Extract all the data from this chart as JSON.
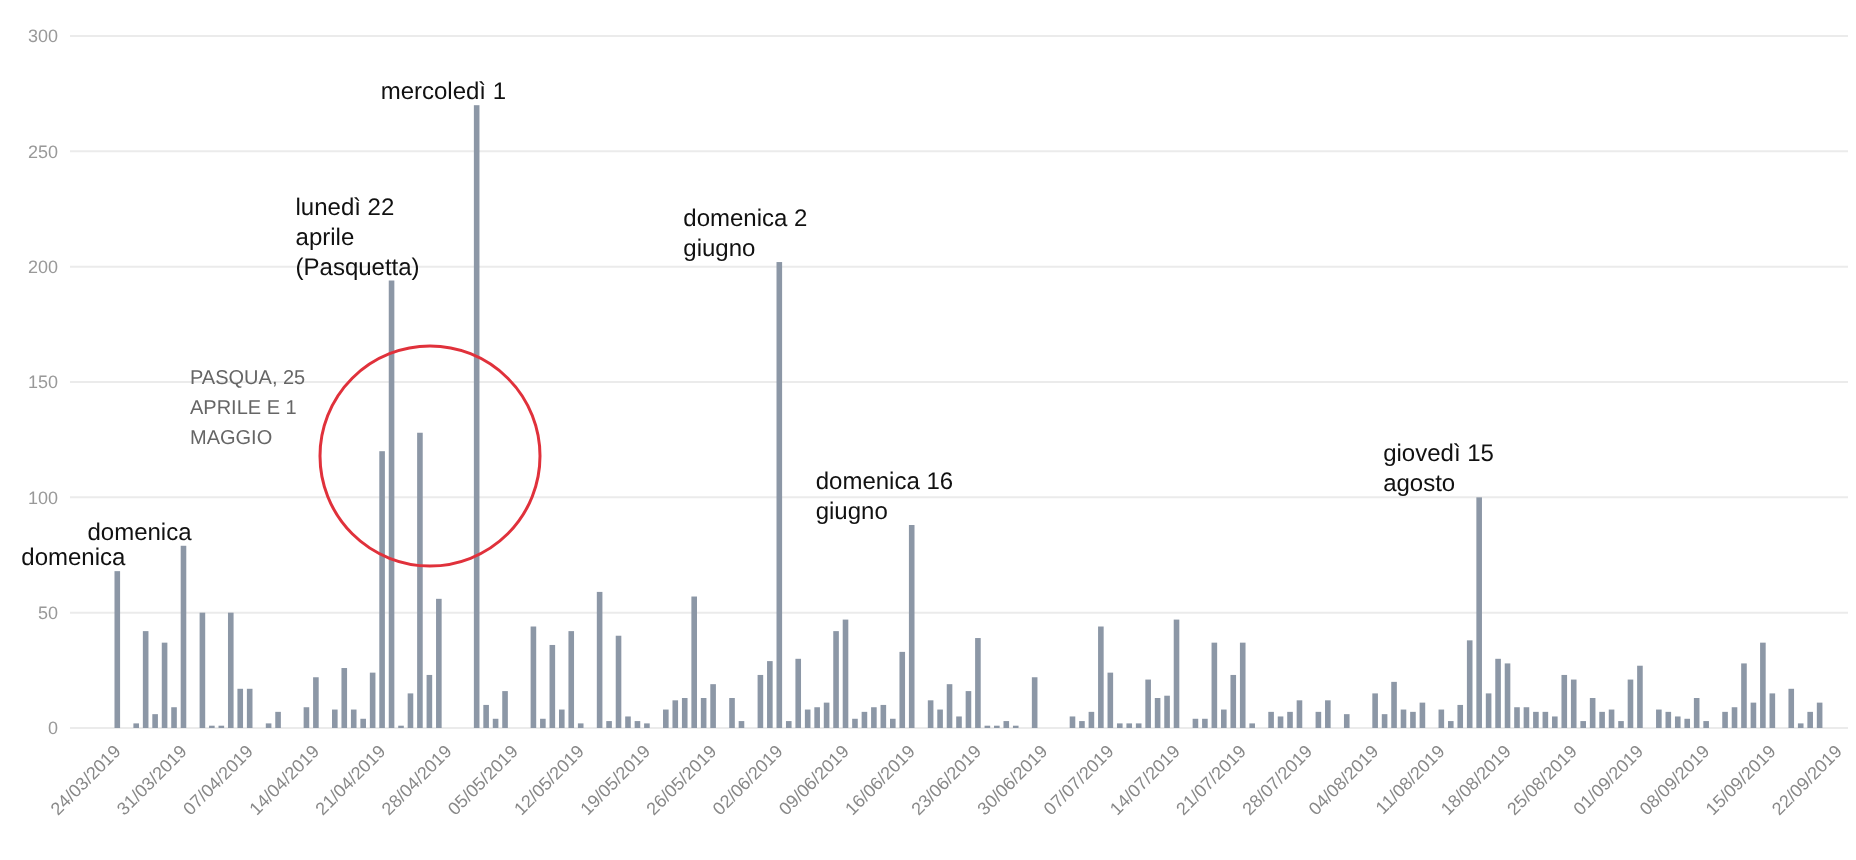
{
  "chart_data": {
    "type": "bar",
    "color": "#8c97a6",
    "x": [
      "2019-03-24",
      "2019-03-25",
      "2019-03-26",
      "2019-03-27",
      "2019-03-28",
      "2019-03-29",
      "2019-03-30",
      "2019-03-31",
      "2019-04-01",
      "2019-04-02",
      "2019-04-03",
      "2019-04-04",
      "2019-04-05",
      "2019-04-06",
      "2019-04-07",
      "2019-04-08",
      "2019-04-09",
      "2019-04-10",
      "2019-04-11",
      "2019-04-12",
      "2019-04-13",
      "2019-04-14",
      "2019-04-15",
      "2019-04-16",
      "2019-04-17",
      "2019-04-18",
      "2019-04-19",
      "2019-04-20",
      "2019-04-21",
      "2019-04-22",
      "2019-04-23",
      "2019-04-24",
      "2019-04-25",
      "2019-04-26",
      "2019-04-27",
      "2019-04-28",
      "2019-04-29",
      "2019-04-30",
      "2019-05-01",
      "2019-05-02",
      "2019-05-03",
      "2019-05-04",
      "2019-05-05",
      "2019-05-06",
      "2019-05-07",
      "2019-05-08",
      "2019-05-09",
      "2019-05-10",
      "2019-05-11",
      "2019-05-12",
      "2019-05-13",
      "2019-05-14",
      "2019-05-15",
      "2019-05-16",
      "2019-05-17",
      "2019-05-18",
      "2019-05-19",
      "2019-05-20",
      "2019-05-21",
      "2019-05-22",
      "2019-05-23",
      "2019-05-24",
      "2019-05-25",
      "2019-05-26",
      "2019-05-27",
      "2019-05-28",
      "2019-05-29",
      "2019-05-30",
      "2019-05-31",
      "2019-06-01",
      "2019-06-02",
      "2019-06-03",
      "2019-06-04",
      "2019-06-05",
      "2019-06-06",
      "2019-06-07",
      "2019-06-08",
      "2019-06-09",
      "2019-06-10",
      "2019-06-11",
      "2019-06-12",
      "2019-06-13",
      "2019-06-14",
      "2019-06-15",
      "2019-06-16",
      "2019-06-17",
      "2019-06-18",
      "2019-06-19",
      "2019-06-20",
      "2019-06-21",
      "2019-06-22",
      "2019-06-23",
      "2019-06-24",
      "2019-06-25",
      "2019-06-26",
      "2019-06-27",
      "2019-06-28",
      "2019-06-29",
      "2019-06-30",
      "2019-07-01",
      "2019-07-02",
      "2019-07-03",
      "2019-07-04",
      "2019-07-05",
      "2019-07-06",
      "2019-07-07",
      "2019-07-08",
      "2019-07-09",
      "2019-07-10",
      "2019-07-11",
      "2019-07-12",
      "2019-07-13",
      "2019-07-14",
      "2019-07-15",
      "2019-07-16",
      "2019-07-17",
      "2019-07-18",
      "2019-07-19",
      "2019-07-20",
      "2019-07-21",
      "2019-07-22",
      "2019-07-23",
      "2019-07-24",
      "2019-07-25",
      "2019-07-26",
      "2019-07-27",
      "2019-07-28",
      "2019-07-29",
      "2019-07-30",
      "2019-07-31",
      "2019-08-01",
      "2019-08-02",
      "2019-08-03",
      "2019-08-04",
      "2019-08-05",
      "2019-08-06",
      "2019-08-07",
      "2019-08-08",
      "2019-08-09",
      "2019-08-10",
      "2019-08-11",
      "2019-08-12",
      "2019-08-13",
      "2019-08-14",
      "2019-08-15",
      "2019-08-16",
      "2019-08-17",
      "2019-08-18",
      "2019-08-19",
      "2019-08-20",
      "2019-08-21",
      "2019-08-22",
      "2019-08-23",
      "2019-08-24",
      "2019-08-25",
      "2019-08-26",
      "2019-08-27",
      "2019-08-28",
      "2019-08-29",
      "2019-08-30",
      "2019-08-31",
      "2019-09-01",
      "2019-09-02",
      "2019-09-03",
      "2019-09-04",
      "2019-09-05",
      "2019-09-06",
      "2019-09-07",
      "2019-09-08",
      "2019-09-09",
      "2019-09-10",
      "2019-09-11",
      "2019-09-12",
      "2019-09-13",
      "2019-09-14",
      "2019-09-15",
      "2019-09-16",
      "2019-09-17",
      "2019-09-18",
      "2019-09-19",
      "2019-09-20"
    ],
    "values": [
      68,
      0,
      2,
      42,
      6,
      37,
      9,
      79,
      0,
      50,
      1,
      1,
      50,
      17,
      17,
      0,
      2,
      7,
      0,
      0,
      9,
      22,
      0,
      8,
      26,
      8,
      4,
      24,
      120,
      194,
      1,
      15,
      128,
      23,
      56,
      0,
      0,
      0,
      270,
      10,
      4,
      16,
      0,
      0,
      44,
      4,
      36,
      8,
      42,
      2,
      0,
      59,
      3,
      40,
      5,
      3,
      2,
      0,
      8,
      12,
      13,
      57,
      13,
      19,
      0,
      13,
      3,
      0,
      23,
      29,
      202,
      3,
      30,
      8,
      9,
      11,
      42,
      47,
      4,
      7,
      9,
      10,
      4,
      33,
      88,
      0,
      12,
      8,
      19,
      5,
      16,
      39,
      1,
      1,
      3,
      1,
      0,
      22,
      0,
      0,
      0,
      5,
      3,
      7,
      44,
      24,
      2,
      2,
      2,
      21,
      13,
      14,
      47,
      0,
      4,
      4,
      37,
      8,
      23,
      37,
      2,
      0,
      7,
      5,
      7,
      12,
      0,
      7,
      12,
      0,
      6,
      0,
      0,
      15,
      6,
      20,
      8,
      7,
      11,
      0,
      8,
      3,
      10,
      38,
      100,
      15,
      30,
      28,
      9,
      9,
      7,
      7,
      5,
      23,
      21,
      3,
      13,
      7,
      8,
      3,
      21,
      27,
      0,
      8,
      7,
      5,
      4,
      13,
      3,
      0,
      7,
      9,
      28,
      11,
      37,
      15,
      0,
      17,
      2,
      7,
      11
    ],
    "xlim": [
      "2019-03-19",
      "2019-09-23"
    ],
    "xticks": [
      {
        "value": "2019-03-24",
        "label": "24/03/2019"
      },
      {
        "value": "2019-03-31",
        "label": "31/03/2019"
      },
      {
        "value": "2019-04-07",
        "label": "07/04/2019"
      },
      {
        "value": "2019-04-14",
        "label": "14/04/2019"
      },
      {
        "value": "2019-04-21",
        "label": "21/04/2019"
      },
      {
        "value": "2019-04-28",
        "label": "28/04/2019"
      },
      {
        "value": "2019-05-05",
        "label": "05/05/2019"
      },
      {
        "value": "2019-05-12",
        "label": "12/05/2019"
      },
      {
        "value": "2019-05-19",
        "label": "19/05/2019"
      },
      {
        "value": "2019-05-26",
        "label": "26/05/2019"
      },
      {
        "value": "2019-06-02",
        "label": "02/06/2019"
      },
      {
        "value": "2019-06-09",
        "label": "09/06/2019"
      },
      {
        "value": "2019-06-16",
        "label": "16/06/2019"
      },
      {
        "value": "2019-06-23",
        "label": "23/06/2019"
      },
      {
        "value": "2019-06-30",
        "label": "30/06/2019"
      },
      {
        "value": "2019-07-07",
        "label": "07/07/2019"
      },
      {
        "value": "2019-07-14",
        "label": "14/07/2019"
      },
      {
        "value": "2019-07-21",
        "label": "21/07/2019"
      },
      {
        "value": "2019-07-28",
        "label": "28/07/2019"
      },
      {
        "value": "2019-08-04",
        "label": "04/08/2019"
      },
      {
        "value": "2019-08-11",
        "label": "11/08/2019"
      },
      {
        "value": "2019-08-18",
        "label": "18/08/2019"
      },
      {
        "value": "2019-08-25",
        "label": "25/08/2019"
      },
      {
        "value": "2019-09-01",
        "label": "01/09/2019"
      },
      {
        "value": "2019-09-08",
        "label": "08/09/2019"
      },
      {
        "value": "2019-09-15",
        "label": "15/09/2019"
      },
      {
        "value": "2019-09-22",
        "label": "22/09/2019"
      }
    ],
    "ylim": [
      0,
      300
    ],
    "yticks": [
      0,
      50,
      100,
      150,
      200,
      250,
      300
    ],
    "grid": "y",
    "annotations": [
      {
        "text": "domenica",
        "x": "2019-03-24",
        "y": 68
      },
      {
        "text": "domenica",
        "x": "2019-03-31",
        "y": 79
      },
      {
        "text": "lunedì 22 aprile (Pasquetta)",
        "x": "2019-04-22",
        "y": 194
      },
      "PASQUA, 25 APRILE E 1 MAGGIO",
      {
        "text": "mercoledì 1",
        "x": "2019-05-01",
        "y": 270
      },
      {
        "text": "domenica 2 giugno",
        "x": "2019-06-02",
        "y": 202
      },
      {
        "text": "domenica 16 giugno",
        "x": "2019-06-16",
        "y": 88
      },
      {
        "text": "giovedì 15 agosto",
        "x": "2019-08-15",
        "y": 100
      }
    ]
  }
}
